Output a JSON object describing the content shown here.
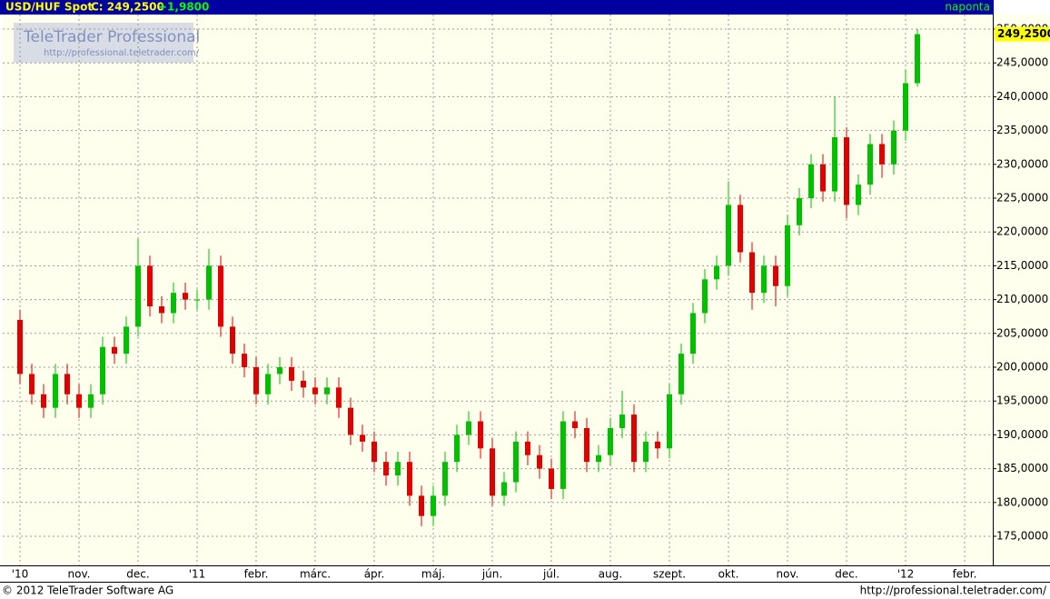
{
  "chart_data": {
    "type": "candlestick",
    "title": "USD/HUF Spot",
    "close_label": "C: 249,2500",
    "change_label": "+1,9800",
    "period": "naponta",
    "last_value_label": "249,2500",
    "watermark": "TeleTrader Professional",
    "watermark_url": "http://professional.teletrader.com/",
    "footer_left": "© 2012 TeleTrader Software AG",
    "footer_right": "http://professional.teletrader.com/",
    "up_color": "#00c000",
    "down_color": "#e00000",
    "grid": true,
    "ylim": [
      170.7,
      252.15
    ],
    "yticks": [
      {
        "value": 175,
        "label": "175,0000"
      },
      {
        "value": 180,
        "label": "180,0000"
      },
      {
        "value": 185,
        "label": "185,0000"
      },
      {
        "value": 190,
        "label": "190,0000"
      },
      {
        "value": 195,
        "label": "195,0000"
      },
      {
        "value": 200,
        "label": "200,0000"
      },
      {
        "value": 205,
        "label": "205,0000"
      },
      {
        "value": 210,
        "label": "210,0000"
      },
      {
        "value": 215,
        "label": "215,0000"
      },
      {
        "value": 220,
        "label": "220,0000"
      },
      {
        "value": 225,
        "label": "225,0000"
      },
      {
        "value": 230,
        "label": "230,0000"
      },
      {
        "value": 235,
        "label": "235,0000"
      },
      {
        "value": 240,
        "label": "240,0000"
      },
      {
        "value": 245,
        "label": "245,0000"
      },
      {
        "value": 250,
        "label": "250,0000"
      }
    ],
    "categories": [
      "'10",
      null,
      null,
      null,
      null,
      "nov.",
      null,
      null,
      null,
      null,
      "dec.",
      null,
      null,
      null,
      null,
      "'11",
      null,
      null,
      null,
      null,
      "febr.",
      null,
      null,
      null,
      null,
      "márc.",
      null,
      null,
      null,
      null,
      "ápr.",
      null,
      null,
      null,
      null,
      "máj.",
      null,
      null,
      null,
      null,
      "jún.",
      null,
      null,
      null,
      null,
      "júl.",
      null,
      null,
      null,
      null,
      "aug.",
      null,
      null,
      null,
      null,
      "szept.",
      null,
      null,
      null,
      null,
      "okt.",
      null,
      null,
      null,
      null,
      "nov.",
      null,
      null,
      null,
      null,
      "dec.",
      null,
      null,
      null,
      null,
      "'12",
      null,
      null,
      null,
      null,
      "febr.",
      null,
      null
    ],
    "open": [
      207,
      199,
      196,
      194,
      199,
      196,
      194,
      196,
      203,
      202,
      206,
      215,
      209,
      208,
      211,
      210,
      210,
      215,
      206,
      202,
      200,
      196,
      199,
      200,
      198,
      197,
      196,
      197,
      194,
      190,
      189,
      186,
      184,
      186,
      181,
      178,
      181,
      186,
      190,
      192,
      188,
      181,
      183,
      189,
      187,
      185,
      182,
      192,
      191,
      186,
      187,
      191,
      193,
      186,
      189,
      188,
      196,
      202,
      208,
      213,
      215,
      224,
      217,
      211,
      215,
      212,
      221,
      225,
      230,
      226,
      234,
      224,
      227,
      233,
      230,
      235,
      242,
      null,
      null,
      null,
      null,
      null,
      null
    ],
    "high": [
      208.5,
      200.5,
      197.5,
      200.5,
      200.5,
      197.5,
      197.5,
      204.5,
      204.5,
      207.5,
      219,
      216.5,
      210.5,
      212.5,
      212.5,
      211.5,
      217.5,
      216.5,
      207.5,
      203.5,
      201.5,
      200.5,
      201.5,
      201.5,
      199.5,
      198.5,
      198.5,
      198.5,
      195.5,
      191.5,
      190.5,
      187.5,
      187.5,
      187.5,
      182.5,
      182.5,
      187.5,
      191.5,
      193.5,
      193.5,
      189.5,
      184.5,
      190.5,
      190.5,
      188.5,
      186.5,
      193.5,
      193.5,
      192.5,
      188.5,
      192.5,
      196.5,
      194.5,
      190.5,
      190.5,
      197.5,
      203.5,
      209.5,
      214.5,
      216.5,
      227.5,
      225.5,
      218.5,
      216.5,
      216.5,
      222.5,
      226.5,
      231.5,
      231.5,
      240,
      235.5,
      228.5,
      234.5,
      234.5,
      236.5,
      244,
      250,
      null,
      null,
      null,
      null,
      null,
      null
    ],
    "low": [
      197.5,
      194.5,
      192.5,
      192.5,
      194.5,
      192.5,
      192.5,
      194.5,
      200.5,
      200.5,
      204.5,
      207.5,
      206.5,
      206.5,
      208.5,
      208.5,
      208.5,
      204.5,
      200.5,
      198.5,
      194.5,
      194.5,
      197.5,
      196.5,
      195.5,
      194.5,
      194.5,
      192.5,
      188.5,
      187.5,
      184.5,
      182.5,
      182.5,
      179.5,
      176.5,
      176.5,
      179.5,
      184.5,
      188.5,
      186.5,
      179.5,
      179.5,
      181.5,
      185.5,
      183.5,
      180.5,
      180.5,
      189.5,
      184.5,
      184.5,
      185.5,
      189.5,
      184.5,
      184.5,
      186.5,
      186.5,
      194.5,
      200.5,
      206.5,
      211.5,
      213.5,
      215.5,
      208.5,
      209.5,
      209,
      210.5,
      219.5,
      223.5,
      224.5,
      224.5,
      222,
      222.5,
      225.5,
      228,
      228.5,
      233.5,
      241.5,
      null,
      null,
      null,
      null,
      null,
      null
    ],
    "close": [
      199,
      196,
      194,
      199,
      196,
      194,
      196,
      203,
      202,
      206,
      215,
      209,
      208,
      211,
      210,
      210,
      215,
      206,
      202,
      200,
      196,
      199,
      200,
      198,
      197,
      196,
      197,
      194,
      190,
      189,
      186,
      184,
      186,
      181,
      178,
      181,
      186,
      190,
      192,
      188,
      181,
      183,
      189,
      187,
      185,
      182,
      192,
      191,
      186,
      187,
      191,
      193,
      186,
      189,
      188,
      196,
      202,
      208,
      213,
      215,
      224,
      217,
      211,
      215,
      212,
      221,
      225,
      230,
      226,
      234,
      224,
      227,
      233,
      230,
      235,
      242,
      249.25,
      null,
      null,
      null,
      null,
      null,
      null
    ]
  }
}
